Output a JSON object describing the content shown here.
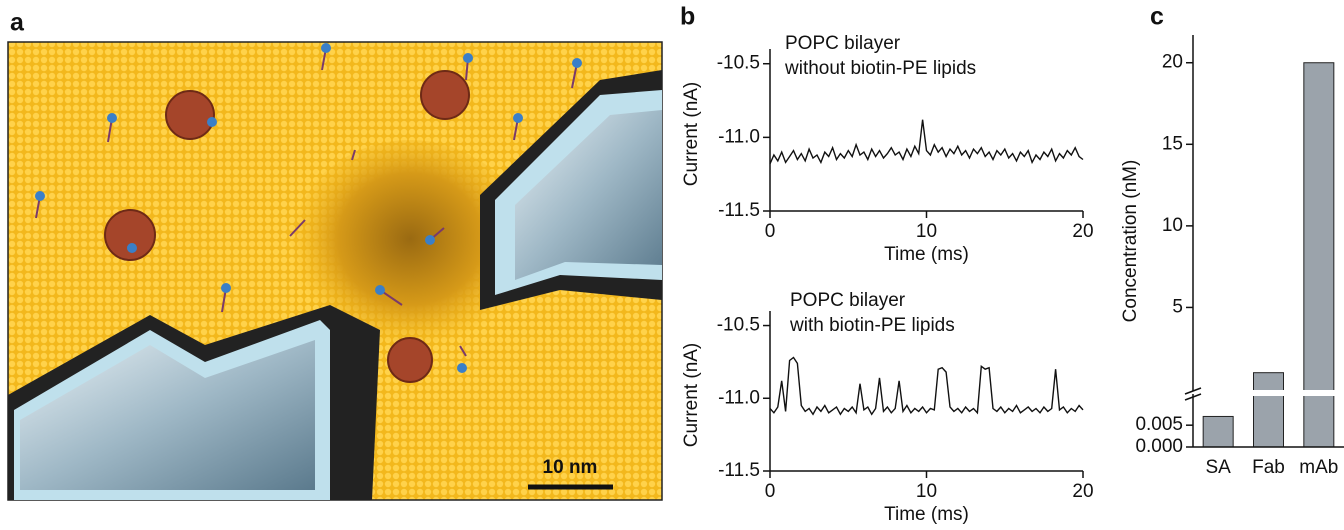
{
  "illustration": {
    "label": "a",
    "scale_bar": "10 nm"
  },
  "chart_data": [
    {
      "type": "line",
      "label": "b",
      "title": "POPC bilayer",
      "subtitle": "without biotin-PE lipids",
      "ylabel": "Current (nA)",
      "xlabel": "Time (ms)",
      "color": "#111111",
      "xlim": [
        0,
        20
      ],
      "xticks": [
        0,
        10,
        20
      ],
      "ylim": [
        -11.5,
        -10.4
      ],
      "yticks": [
        -10.5,
        {
          "value": -11,
          "label": "-11.0"
        },
        -11.5
      ],
      "x": [
        0,
        0.25,
        0.5,
        0.75,
        1,
        1.25,
        1.5,
        1.75,
        2,
        2.25,
        2.5,
        2.75,
        3,
        3.25,
        3.5,
        3.75,
        4,
        4.25,
        4.5,
        4.75,
        5,
        5.25,
        5.5,
        5.75,
        6,
        6.25,
        6.5,
        6.75,
        7,
        7.25,
        7.5,
        7.75,
        8,
        8.25,
        8.5,
        8.75,
        9,
        9.25,
        9.5,
        9.75,
        10,
        10.25,
        10.5,
        10.75,
        11,
        11.25,
        11.5,
        11.75,
        12,
        12.25,
        12.5,
        12.75,
        13,
        13.25,
        13.5,
        13.75,
        14,
        14.25,
        14.5,
        14.75,
        15,
        15.25,
        15.5,
        15.75,
        16,
        16.25,
        16.5,
        16.75,
        17,
        17.25,
        17.5,
        17.75,
        18,
        18.25,
        18.5,
        18.75,
        19,
        19.25,
        19.5,
        19.75,
        20
      ],
      "values": [
        -11.18,
        -11.12,
        -11.16,
        -11.1,
        -11.17,
        -11.13,
        -11.09,
        -11.15,
        -11.11,
        -11.16,
        -11.08,
        -11.14,
        -11.12,
        -11.17,
        -11.1,
        -11.13,
        -11.07,
        -11.15,
        -11.11,
        -11.14,
        -11.09,
        -11.13,
        -11.05,
        -11.12,
        -11.1,
        -11.15,
        -11.08,
        -11.13,
        -11.09,
        -11.14,
        -11.11,
        -11.07,
        -11.12,
        -11.1,
        -11.15,
        -11.08,
        -11.13,
        -11.06,
        -11.11,
        -10.88,
        -11.09,
        -11.12,
        -11.05,
        -11.1,
        -11.07,
        -11.13,
        -11.08,
        -11.11,
        -11.06,
        -11.12,
        -11.09,
        -11.14,
        -11.08,
        -11.11,
        -11.07,
        -11.13,
        -11.1,
        -11.15,
        -11.09,
        -11.12,
        -11.08,
        -11.14,
        -11.11,
        -11.16,
        -11.1,
        -11.13,
        -11.09,
        -11.17,
        -11.12,
        -11.15,
        -11.1,
        -11.13,
        -11.08,
        -11.16,
        -11.11,
        -11.14,
        -11.09,
        -11.12,
        -11.07,
        -11.13,
        -11.15
      ]
    },
    {
      "type": "line",
      "title": "POPC bilayer",
      "subtitle": "with biotin-PE lipids",
      "ylabel": "Current (nA)",
      "xlabel": "Time (ms)",
      "color": "#111111",
      "xlim": [
        0,
        20
      ],
      "xticks": [
        0,
        10,
        20
      ],
      "ylim": [
        -11.5,
        -10.4
      ],
      "yticks": [
        -10.5,
        {
          "value": -11,
          "label": "-11.0"
        },
        -11.5
      ],
      "x": [
        0,
        0.25,
        0.5,
        0.75,
        1,
        1.25,
        1.5,
        1.75,
        2,
        2.25,
        2.5,
        2.75,
        3,
        3.25,
        3.5,
        3.75,
        4,
        4.25,
        4.5,
        4.75,
        5,
        5.25,
        5.5,
        5.75,
        6,
        6.25,
        6.5,
        6.75,
        7,
        7.25,
        7.5,
        7.75,
        8,
        8.25,
        8.5,
        8.75,
        9,
        9.25,
        9.5,
        9.75,
        10,
        10.25,
        10.5,
        10.75,
        11,
        11.25,
        11.5,
        11.75,
        12,
        12.25,
        12.5,
        12.75,
        13,
        13.25,
        13.5,
        13.75,
        14,
        14.25,
        14.5,
        14.75,
        15,
        15.25,
        15.5,
        15.75,
        16,
        16.25,
        16.5,
        16.75,
        17,
        17.25,
        17.5,
        17.75,
        18,
        18.25,
        18.5,
        18.75,
        19,
        19.25,
        19.5,
        19.75,
        20
      ],
      "values": [
        -11.07,
        -11.1,
        -11.06,
        -10.88,
        -11.09,
        -10.74,
        -10.72,
        -10.76,
        -11.05,
        -11.09,
        -11.07,
        -11.11,
        -11.06,
        -11.09,
        -11.05,
        -11.1,
        -11.08,
        -11.06,
        -11.11,
        -11.07,
        -11.09,
        -11.06,
        -11.1,
        -10.9,
        -11.08,
        -11.06,
        -11.11,
        -11.07,
        -10.86,
        -11.09,
        -11.06,
        -11.1,
        -11.07,
        -10.88,
        -11.09,
        -11.05,
        -11.1,
        -11.07,
        -11.09,
        -11.06,
        -11.1,
        -11.07,
        -11.08,
        -10.8,
        -10.79,
        -10.82,
        -11.06,
        -11.09,
        -11.07,
        -11.1,
        -11.06,
        -11.09,
        -11.07,
        -11.1,
        -10.78,
        -10.8,
        -10.79,
        -11.07,
        -11.09,
        -11.06,
        -11.1,
        -11.07,
        -11.09,
        -11.05,
        -11.1,
        -11.08,
        -11.06,
        -11.09,
        -11.07,
        -11.1,
        -11.06,
        -11.09,
        -11.07,
        -10.8,
        -11.08,
        -11.06,
        -11.1,
        -11.07,
        -11.09,
        -11.05,
        -11.08
      ]
    },
    {
      "type": "bar",
      "label": "c",
      "ylabel": "Concentration (nM)",
      "color": "#9ba3ab",
      "categories": [
        "SA",
        "Fab",
        "mAb"
      ],
      "values": [
        0.007,
        1,
        20
      ],
      "ylim": [
        0,
        21.7
      ],
      "yticks": [
        5,
        10,
        15,
        20
      ],
      "ylim_low": [
        0,
        0.011
      ],
      "yticks_low": [
        {
          "value": 0,
          "label": "0.000"
        },
        {
          "value": 0.005,
          "label": "0.005"
        }
      ]
    }
  ]
}
